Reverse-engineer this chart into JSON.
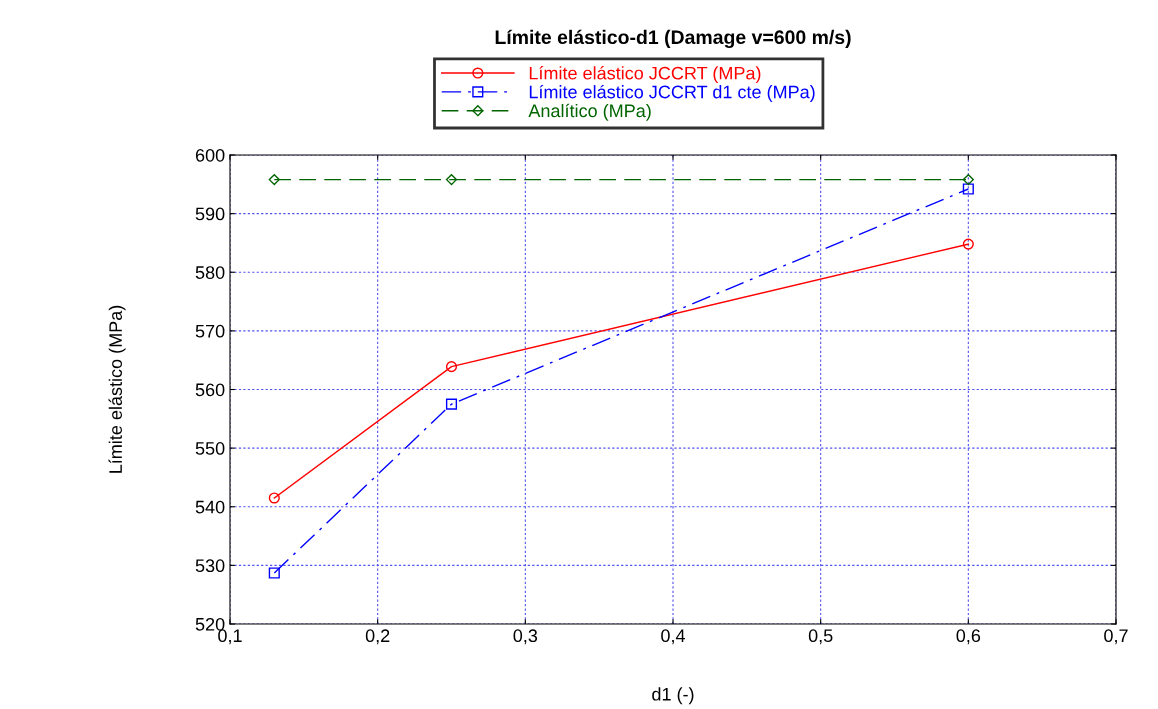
{
  "chart_data": {
    "type": "line",
    "title": "Límite elástico-d1 (Damage v=600 m/s)",
    "xlabel": "d1 (-)",
    "ylabel": "Límite elástico (MPa)",
    "x": [
      0.13,
      0.25,
      0.6
    ],
    "series": [
      {
        "name": "Límite elástico JCCRT (MPa)",
        "color": "#ff0000",
        "values": [
          541.5,
          563.9,
          584.8
        ],
        "marker": "circle",
        "line_style": "solid"
      },
      {
        "name": "Límite elástico JCCRT d1 cte (MPa)",
        "color": "#0000ff",
        "values": [
          528.7,
          557.5,
          594.2
        ],
        "marker": "square",
        "line_style": "dashdot"
      },
      {
        "name": "Analítico (MPa)",
        "color": "#006400",
        "values": [
          595.8,
          595.8,
          595.8
        ],
        "marker": "diamond",
        "line_style": "dashed"
      }
    ],
    "xlim": [
      0.1,
      0.7
    ],
    "xticks": [
      {
        "value": 0.1,
        "label": "0,1"
      },
      {
        "value": 0.2,
        "label": "0,2"
      },
      {
        "value": 0.3,
        "label": "0,3"
      },
      {
        "value": 0.4,
        "label": "0,4"
      },
      {
        "value": 0.5,
        "label": "0,5"
      },
      {
        "value": 0.6,
        "label": "0,6"
      },
      {
        "value": 0.7,
        "label": "0,7"
      }
    ],
    "ylim": [
      520,
      600
    ],
    "yticks": [
      520,
      530,
      540,
      550,
      560,
      570,
      580,
      590,
      600
    ],
    "grid": true,
    "legend": "top"
  }
}
